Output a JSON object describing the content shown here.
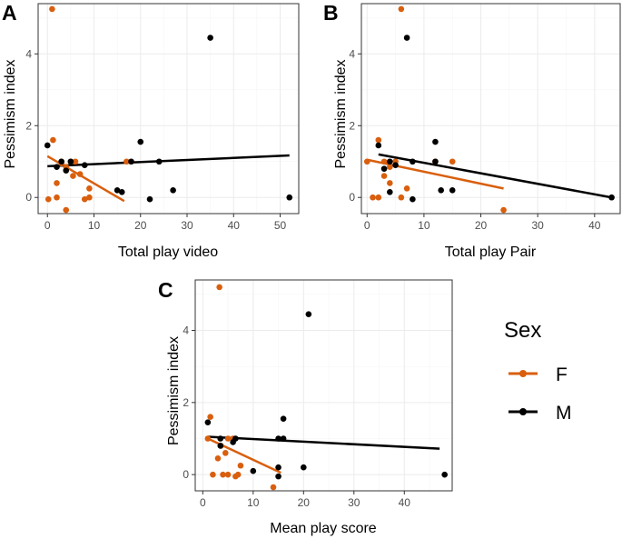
{
  "chart_data": [
    {
      "panel": "A",
      "type": "scatter",
      "xlabel": "Total play video",
      "ylabel": "Pessimism index",
      "xlim": [
        -2,
        54
      ],
      "ylim": [
        -0.45,
        5.4
      ],
      "xticks": [
        0,
        10,
        20,
        30,
        40,
        50
      ],
      "yticks": [
        0,
        2,
        4
      ],
      "series": [
        {
          "name": "F",
          "points": [
            [
              0.2,
              -0.05
            ],
            [
              1,
              5.25
            ],
            [
              1.2,
              1.6
            ],
            [
              2,
              0
            ],
            [
              2,
              0.4
            ],
            [
              3,
              0.95
            ],
            [
              3,
              1
            ],
            [
              4,
              -0.35
            ],
            [
              4,
              0.85
            ],
            [
              5,
              1
            ],
            [
              5.5,
              0.6
            ],
            [
              6,
              1
            ],
            [
              7,
              0.65
            ],
            [
              8,
              -0.05
            ],
            [
              9,
              0.25
            ],
            [
              9,
              0
            ],
            [
              17,
              1
            ]
          ],
          "fit": [
            [
              0,
              1.15
            ],
            [
              16.5,
              -0.1
            ]
          ]
        },
        {
          "name": "M",
          "points": [
            [
              0,
              1.45
            ],
            [
              2,
              0.85
            ],
            [
              3,
              1
            ],
            [
              4,
              0.75
            ],
            [
              5,
              1
            ],
            [
              8,
              0.9
            ],
            [
              15,
              0.2
            ],
            [
              16,
              0.15
            ],
            [
              18,
              1
            ],
            [
              20,
              1.55
            ],
            [
              22,
              -0.05
            ],
            [
              24,
              1
            ],
            [
              27,
              0.2
            ],
            [
              35,
              4.45
            ],
            [
              52,
              0
            ]
          ],
          "fit": [
            [
              0,
              0.87
            ],
            [
              52,
              1.17
            ]
          ]
        }
      ]
    },
    {
      "panel": "B",
      "type": "scatter",
      "xlabel": "Total play Pair",
      "ylabel": "Pessimism index",
      "xlim": [
        -1,
        44.5
      ],
      "ylim": [
        -0.45,
        5.4
      ],
      "xticks": [
        0,
        10,
        20,
        30,
        40
      ],
      "yticks": [
        0,
        2,
        4
      ],
      "series": [
        {
          "name": "F",
          "points": [
            [
              0,
              1
            ],
            [
              1,
              0
            ],
            [
              2,
              0
            ],
            [
              2,
              1.6
            ],
            [
              3,
              0.6
            ],
            [
              3,
              1
            ],
            [
              4,
              0.4
            ],
            [
              4,
              0.85
            ],
            [
              5,
              1
            ],
            [
              6,
              5.25
            ],
            [
              6,
              0
            ],
            [
              7,
              0.25
            ],
            [
              12,
              1
            ],
            [
              15,
              1
            ],
            [
              24,
              -0.35
            ]
          ],
          "fit": [
            [
              0,
              1.05
            ],
            [
              24,
              0.25
            ]
          ]
        },
        {
          "name": "M",
          "points": [
            [
              2,
              1.45
            ],
            [
              3,
              0.8
            ],
            [
              4,
              0.15
            ],
            [
              4,
              1
            ],
            [
              5,
              0.9
            ],
            [
              7,
              4.45
            ],
            [
              8,
              1
            ],
            [
              8,
              -0.05
            ],
            [
              12,
              1.55
            ],
            [
              12,
              1
            ],
            [
              13,
              0.2
            ],
            [
              15,
              0.2
            ],
            [
              43,
              0
            ]
          ],
          "fit": [
            [
              2,
              1.2
            ],
            [
              43,
              0
            ]
          ]
        }
      ]
    },
    {
      "panel": "C",
      "type": "scatter",
      "xlabel": "Mean play score",
      "ylabel": "Pessimism index",
      "xlim": [
        -1.5,
        49.5
      ],
      "ylim": [
        -0.45,
        5.4
      ],
      "xticks": [
        0,
        10,
        20,
        30,
        40
      ],
      "yticks": [
        0,
        2,
        4
      ],
      "series": [
        {
          "name": "F",
          "points": [
            [
              1,
              1
            ],
            [
              1.5,
              1.6
            ],
            [
              2,
              0
            ],
            [
              3,
              0.45
            ],
            [
              3.3,
              5.2
            ],
            [
              3.6,
              0.8
            ],
            [
              4,
              0
            ],
            [
              4.5,
              0.6
            ],
            [
              5,
              0
            ],
            [
              5,
              1
            ],
            [
              6,
              1
            ],
            [
              6.5,
              -0.05
            ],
            [
              7,
              0
            ],
            [
              7.5,
              0.25
            ],
            [
              14,
              -0.35
            ]
          ],
          "fit": [
            [
              1,
              1
            ],
            [
              15.5,
              0.05
            ]
          ]
        },
        {
          "name": "M",
          "points": [
            [
              1,
              1.45
            ],
            [
              3.5,
              0.8
            ],
            [
              3.5,
              1
            ],
            [
              6,
              0.9
            ],
            [
              6.5,
              1
            ],
            [
              10,
              0.1
            ],
            [
              15,
              1
            ],
            [
              15,
              0.2
            ],
            [
              15,
              -0.05
            ],
            [
              16,
              1.55
            ],
            [
              16,
              1
            ],
            [
              20,
              0.2
            ],
            [
              21,
              4.45
            ],
            [
              48,
              0
            ]
          ],
          "fit": [
            [
              1,
              1.05
            ],
            [
              47,
              0.72
            ]
          ]
        }
      ]
    }
  ],
  "legend": {
    "title": "Sex",
    "items": [
      {
        "label": "F",
        "color": "#d95f0e"
      },
      {
        "label": "M",
        "color": "#000000"
      }
    ]
  },
  "colors": {
    "F": "#d95f0e",
    "M": "#000000"
  }
}
